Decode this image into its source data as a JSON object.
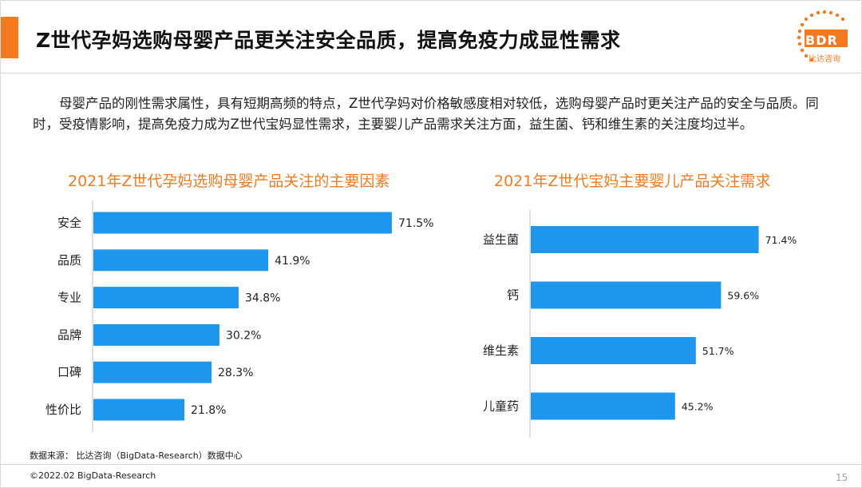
{
  "header": {
    "title": "Z世代孕妈选购母婴产品更关注安全品质，提高免疫力成显性需求"
  },
  "logo": {
    "brand": "BDR",
    "subtitle": "比达咨询"
  },
  "intro": {
    "text": "母婴产品的刚性需求属性，具有短期高频的特点，Z世代孕妈对价格敏感度相对较低，选购母婴产品时更关注产品的安全与品质。同时，受疫情影响，提高免疫力成为Z世代宝妈显性需求，主要婴儿产品需求关注方面，益生菌、钙和维生素的关注度均过半。"
  },
  "colors": {
    "accent": "#f47a20",
    "bar": "#1f96ee"
  },
  "chart_data": [
    {
      "type": "bar",
      "orientation": "horizontal",
      "title": "2021年Z世代孕妈选购母婴产品关注的主要因素",
      "categories": [
        "安全",
        "品质",
        "专业",
        "品牌",
        "口碑",
        "性价比"
      ],
      "values": [
        71.5,
        41.9,
        34.8,
        30.2,
        28.3,
        21.8
      ],
      "value_labels": [
        "71.5%",
        "41.9%",
        "34.8%",
        "30.2%",
        "28.3%",
        "21.8%"
      ],
      "unit": "%",
      "xlim": [
        0,
        100
      ],
      "grid": false,
      "legend": "none"
    },
    {
      "type": "bar",
      "orientation": "horizontal",
      "title": "2021年Z世代宝妈主要婴儿产品关注需求",
      "categories": [
        "益生菌",
        "钙",
        "维生素",
        "儿童药"
      ],
      "values": [
        71.4,
        59.6,
        51.7,
        45.2
      ],
      "value_labels": [
        "71.4%",
        "59.6%",
        "51.7%",
        "45.2%"
      ],
      "unit": "%",
      "xlim": [
        0,
        100
      ],
      "grid": false,
      "legend": "none"
    }
  ],
  "footer": {
    "source": "数据来源： 比达咨询（BigData-Research）数据中心",
    "copyright": "©2022.02 BigData-Research",
    "page": "15"
  }
}
